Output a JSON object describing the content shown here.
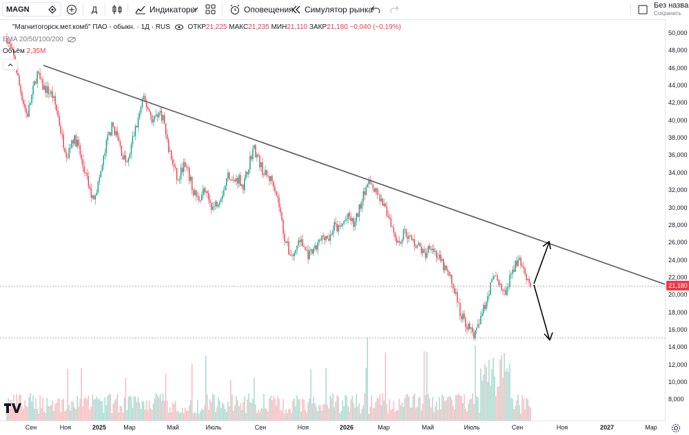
{
  "toolbar": {
    "symbol": "MAGN",
    "interval": "Д",
    "indicators_label": "Индикаторы",
    "alerts_label": "Оповещения",
    "replay_label": "Симулятор рынка",
    "layout_title": "Без названия",
    "save_label": "Сохранить"
  },
  "legend": {
    "title": "\"Магнитогорск.мет.комб\" ПАО - обыкн. · 1Д · RUS",
    "open_label": "ОТКР",
    "open": "21,225",
    "high_label": "МАКС",
    "high": "21,235",
    "low_label": "МИН",
    "low": "21,110",
    "close_label": "ЗАКР",
    "close": "21,180",
    "change": "−0,040 (−0,19%)",
    "ema_label": "EMA 20/50/100/200",
    "volume_label": "Объём",
    "volume_value": "2,35M"
  },
  "price_scale": {
    "ticks": [
      "50,000",
      "48,000",
      "46,000",
      "44,000",
      "42,000",
      "40,000",
      "38,000",
      "36,000",
      "34,000",
      "32,000",
      "30,000",
      "28,000",
      "26,000",
      "24,000",
      "22,000",
      "20,000",
      "18,000",
      "16,000",
      "14,000",
      "12,000",
      "10,000",
      "8,000"
    ],
    "last_price": "21,180"
  },
  "time_scale": {
    "labels": [
      "Сен",
      "Ноя",
      "2025",
      "Мар",
      "Май",
      "Июль",
      "Сен",
      "Ноя",
      "2026",
      "Мар",
      "Май",
      "Июль",
      "Сен",
      "Ноя",
      "2027",
      "Мар"
    ]
  },
  "colors": {
    "up": "#089981",
    "down": "#f23645",
    "trend": "#555555",
    "last_price": "#f23645"
  },
  "chart_data": {
    "type": "candlestick",
    "y_axis_range": [
      7000,
      51500
    ],
    "last_close": 21.18,
    "annotations": [
      "descending trendline",
      "double-headed arrows to ~26 and ~15.5"
    ],
    "price_path": [
      [
        0,
        49.5
      ],
      [
        3,
        47
      ],
      [
        5,
        44
      ],
      [
        8,
        40.5
      ],
      [
        10,
        43
      ],
      [
        12,
        45.5
      ],
      [
        14,
        44
      ],
      [
        16,
        43.5
      ],
      [
        18,
        43
      ],
      [
        20,
        41
      ],
      [
        22,
        38
      ],
      [
        24,
        36
      ],
      [
        26,
        38
      ],
      [
        28,
        37.5
      ],
      [
        30,
        35
      ],
      [
        32,
        33
      ],
      [
        34,
        31
      ],
      [
        36,
        32.5
      ],
      [
        38,
        35
      ],
      [
        40,
        38
      ],
      [
        42,
        39.5
      ],
      [
        44,
        38
      ],
      [
        46,
        36
      ],
      [
        48,
        35
      ],
      [
        50,
        38
      ],
      [
        52,
        40
      ],
      [
        54,
        42.5
      ],
      [
        56,
        41.5
      ],
      [
        58,
        40
      ],
      [
        60,
        41
      ],
      [
        62,
        40.5
      ],
      [
        64,
        37
      ],
      [
        66,
        35
      ],
      [
        68,
        33
      ],
      [
        70,
        35
      ],
      [
        72,
        34
      ],
      [
        74,
        32
      ],
      [
        76,
        31
      ],
      [
        78,
        32
      ],
      [
        80,
        31
      ],
      [
        82,
        30
      ],
      [
        84,
        31
      ],
      [
        86,
        32
      ],
      [
        88,
        34
      ],
      [
        90,
        33
      ],
      [
        92,
        33.5
      ],
      [
        94,
        32.5
      ],
      [
        96,
        35
      ],
      [
        98,
        37
      ],
      [
        100,
        35.5
      ],
      [
        102,
        34
      ],
      [
        104,
        33.5
      ],
      [
        106,
        33
      ],
      [
        108,
        30.5
      ],
      [
        110,
        27
      ],
      [
        112,
        25
      ],
      [
        114,
        24.5
      ],
      [
        116,
        26.5
      ],
      [
        118,
        25.5
      ],
      [
        120,
        24.5
      ],
      [
        122,
        25
      ],
      [
        124,
        26
      ],
      [
        126,
        27
      ],
      [
        128,
        26.5
      ],
      [
        130,
        28
      ],
      [
        132,
        27.5
      ],
      [
        134,
        28.5
      ],
      [
        136,
        29
      ],
      [
        138,
        28
      ],
      [
        140,
        30
      ],
      [
        142,
        32
      ],
      [
        144,
        33
      ],
      [
        146,
        32
      ],
      [
        148,
        31
      ],
      [
        150,
        30
      ],
      [
        152,
        29
      ],
      [
        154,
        27
      ],
      [
        156,
        26
      ],
      [
        158,
        27.5
      ],
      [
        160,
        26.5
      ],
      [
        162,
        26
      ],
      [
        164,
        25.5
      ],
      [
        166,
        24.5
      ],
      [
        168,
        26
      ],
      [
        170,
        25
      ],
      [
        172,
        24
      ],
      [
        174,
        23
      ],
      [
        176,
        22
      ],
      [
        178,
        20.5
      ],
      [
        180,
        18
      ],
      [
        182,
        17
      ],
      [
        184,
        16
      ],
      [
        186,
        15.5
      ],
      [
        188,
        17
      ],
      [
        190,
        19
      ],
      [
        192,
        21
      ],
      [
        194,
        22.5
      ],
      [
        196,
        21
      ],
      [
        198,
        20
      ],
      [
        200,
        22
      ],
      [
        202,
        23.5
      ],
      [
        204,
        24
      ],
      [
        206,
        22.5
      ],
      [
        208,
        21.2
      ]
    ]
  }
}
